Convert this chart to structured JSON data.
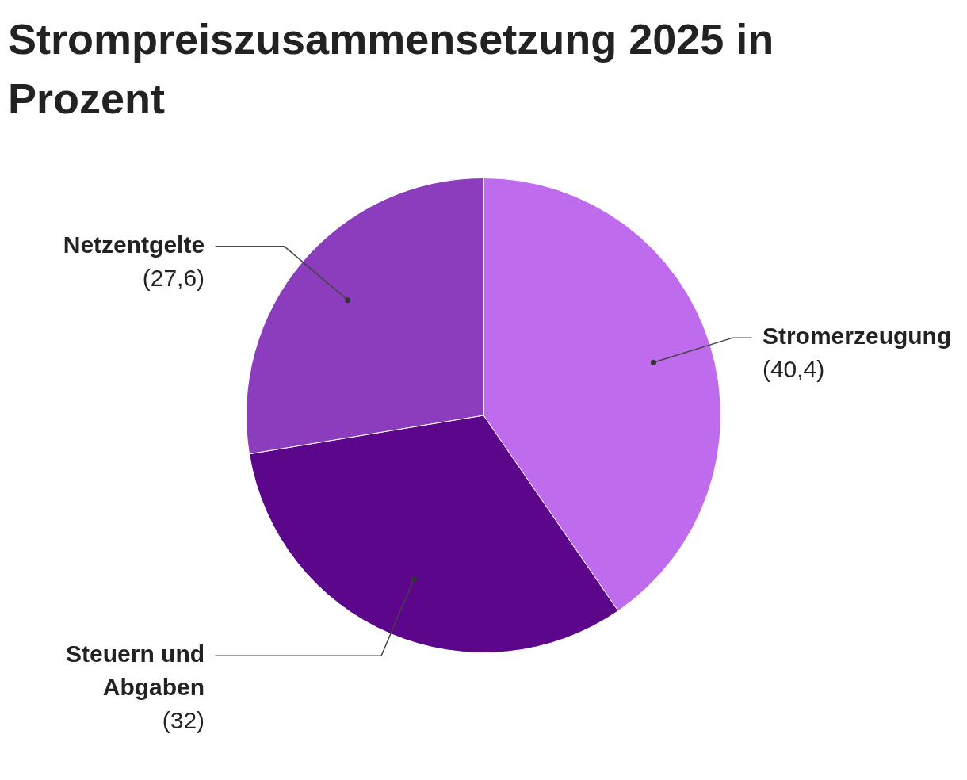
{
  "chart_data": {
    "type": "pie",
    "title": "Strompreiszusammensetzung 2025 in Prozent",
    "categories": [
      "Stromerzeugung",
      "Steuern und Abgaben",
      "Netzentgelte"
    ],
    "values": [
      40.4,
      32,
      27.6
    ],
    "colors": [
      "#bf6bee",
      "#5c068b",
      "#8b3dbd"
    ],
    "value_labels": [
      "(40,4)",
      "(32)",
      "(27,6)"
    ],
    "legend": false
  }
}
